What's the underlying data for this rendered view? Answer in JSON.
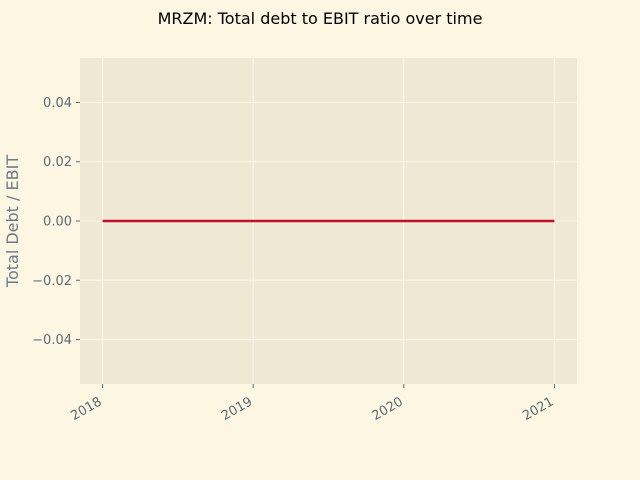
{
  "chart_data": {
    "type": "line",
    "title": "MRZM: Total debt to EBIT ratio over time",
    "xlabel": "",
    "ylabel": "Total Debt / EBIT",
    "x": [
      "2018",
      "2019",
      "2020",
      "2021"
    ],
    "series": [
      {
        "values": [
          0,
          0,
          0,
          0
        ],
        "color": "#c0102a"
      }
    ],
    "xticks": [
      "2018",
      "2019",
      "2020",
      "2021"
    ],
    "yticks": [
      "−0.04",
      "−0.02",
      "0.00",
      "0.02",
      "0.04"
    ],
    "ytick_values": [
      -0.04,
      -0.02,
      0,
      0.02,
      0.04
    ],
    "ylim": [
      -0.055,
      0.055
    ],
    "xlim": [
      2017.85,
      2021.15
    ],
    "grid": true,
    "legend": "none"
  },
  "colors": {
    "page_background": "#fdf6e3",
    "plot_background": "#eee8d5",
    "grid": "#fbf7ec",
    "tick_text": "#5b6b78"
  }
}
